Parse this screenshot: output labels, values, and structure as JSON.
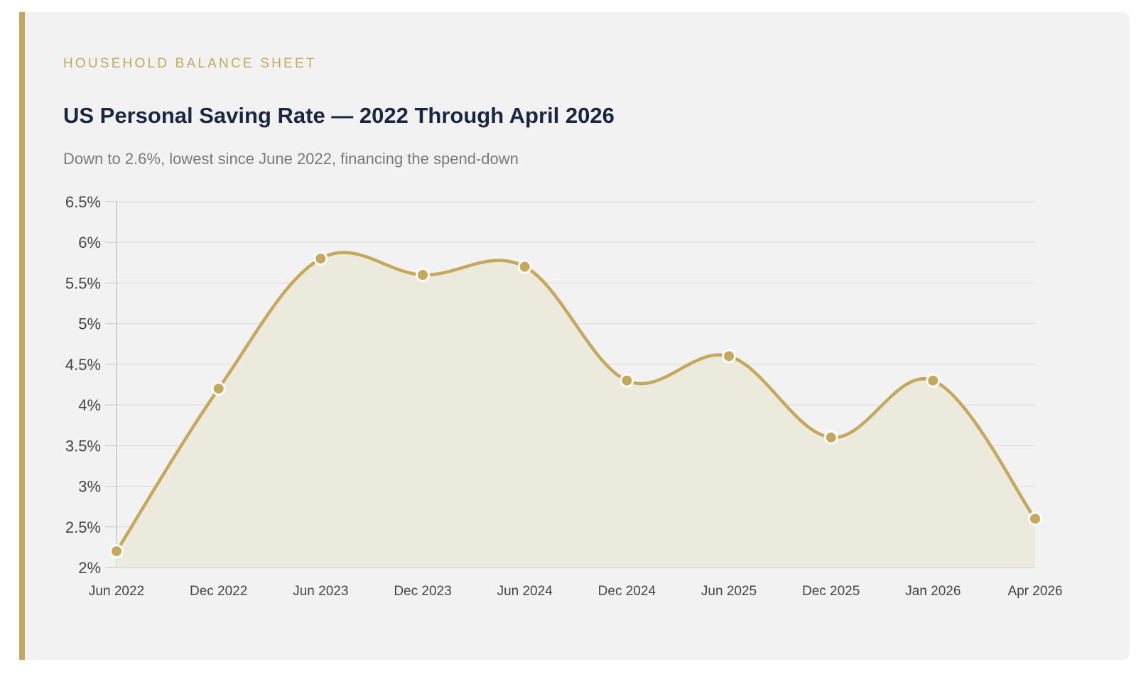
{
  "header": {
    "eyebrow": "HOUSEHOLD BALANCE SHEET",
    "title": "US Personal Saving Rate — 2022 Through April 2026",
    "subtitle": "Down to 2.6%, lowest since June 2022, financing the spend-down"
  },
  "colors": {
    "accent": "#c6a85c",
    "area_fill": "#ece9dd",
    "title": "#1b2640",
    "grid": "#dcdcdc"
  },
  "chart_data": {
    "type": "area",
    "categories": [
      "Jun 2022",
      "Dec 2022",
      "Jun 2023",
      "Dec 2023",
      "Jun 2024",
      "Dec 2024",
      "Jun 2025",
      "Dec 2025",
      "Jan 2026",
      "Apr 2026"
    ],
    "series": [
      {
        "values": [
          2.2,
          4.2,
          5.8,
          5.6,
          5.7,
          4.3,
          4.6,
          3.6,
          4.3,
          2.6
        ]
      }
    ],
    "ylim": [
      2,
      6.5
    ],
    "yticks": [
      2,
      2.5,
      3,
      3.5,
      4,
      4.5,
      5,
      5.5,
      6,
      6.5
    ],
    "ytick_labels": [
      "2%",
      "2.5%",
      "3%",
      "3.5%",
      "4%",
      "4.5%",
      "5%",
      "5.5%",
      "6%",
      "6.5%"
    ],
    "grid": true,
    "legend": "none",
    "xlabel": "",
    "ylabel": ""
  }
}
